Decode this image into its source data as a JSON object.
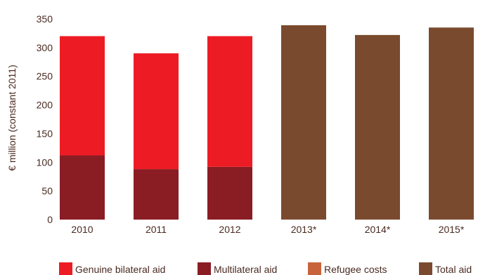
{
  "chart_data": {
    "type": "bar",
    "stacked": true,
    "ylabel": "€ million (constant 2011)",
    "ylim": [
      0,
      350
    ],
    "yticks": [
      "0",
      "50",
      "100",
      "150",
      "200",
      "250",
      "300",
      "350"
    ],
    "categories": [
      "2010",
      "2011",
      "2012",
      "2013*",
      "2014*",
      "2015*"
    ],
    "grid": false,
    "legend_position": "bottom",
    "series": [
      {
        "name": "Multilateral aid",
        "color": "#8a1c24",
        "values": [
          112,
          88,
          92,
          0,
          0,
          0
        ]
      },
      {
        "name": "Genuine bilateral aid",
        "color": "#ed1c24",
        "values": [
          208,
          202,
          228,
          0,
          0,
          0
        ]
      },
      {
        "name": "Refugee costs",
        "color": "#c8643c",
        "values": [
          0,
          0,
          0,
          0,
          0,
          0
        ]
      },
      {
        "name": "Total aid",
        "color": "#7a4a2e",
        "values": [
          0,
          0,
          0,
          339,
          322,
          335
        ]
      }
    ],
    "legend": [
      {
        "label": "Genuine bilateral aid",
        "color": "#ed1c24"
      },
      {
        "label": "Multilateral aid",
        "color": "#8a1c24"
      },
      {
        "label": "Refugee costs",
        "color": "#c8643c"
      },
      {
        "label": "Total aid",
        "color": "#7a4a2e"
      }
    ]
  }
}
